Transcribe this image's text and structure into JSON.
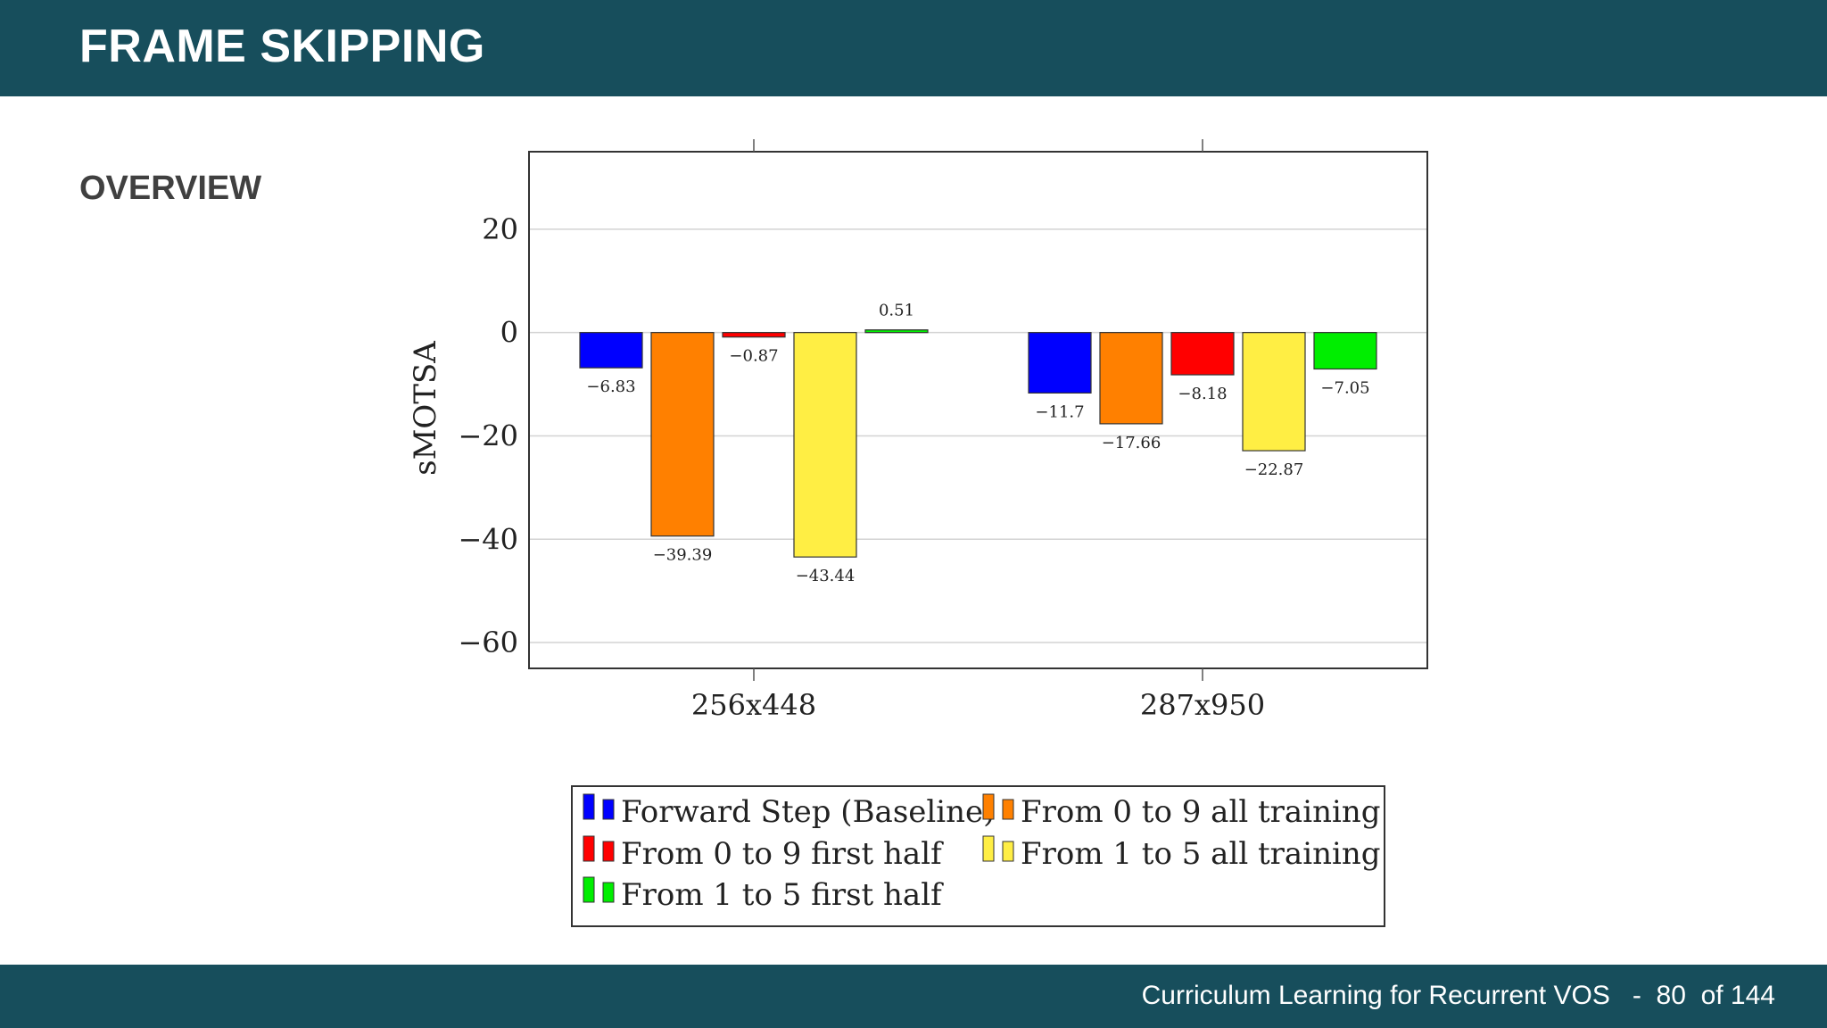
{
  "slide": {
    "title": "FRAME SKIPPING",
    "subtitle": "OVERVIEW",
    "footer_text": "Curriculum Learning for Recurrent VOS",
    "footer_separator": "-",
    "page_current": "80",
    "page_total_text": "of 144"
  },
  "chart_data": {
    "type": "bar",
    "ylabel": "sMOTSA",
    "ylim": [
      -65,
      35
    ],
    "yticks": [
      20,
      0,
      -20,
      -40,
      -60
    ],
    "grid": true,
    "legend_position": "below",
    "categories": [
      "256x448",
      "287x950"
    ],
    "series": [
      {
        "name": "Forward Step (Baseline)",
        "color": "#0000ff",
        "values": [
          -6.83,
          -11.7
        ],
        "labels": [
          "−6.83",
          "−11.7"
        ]
      },
      {
        "name": "From 0 to 9 all training",
        "color": "#ff8000",
        "values": [
          -39.39,
          -17.66
        ],
        "labels": [
          "−39.39",
          "−17.66"
        ]
      },
      {
        "name": "From 0 to 9 first half",
        "color": "#ff0000",
        "values": [
          -0.87,
          -8.18
        ],
        "labels": [
          "−0.87",
          "−8.18"
        ]
      },
      {
        "name": "From 1 to 5 all training",
        "color": "#ffee44",
        "values": [
          -43.44,
          -22.87
        ],
        "labels": [
          "−43.44",
          "−22.87"
        ]
      },
      {
        "name": "From 1 to 5 first half",
        "color": "#00ee00",
        "values": [
          0.51,
          -7.05
        ],
        "labels": [
          "0.51",
          "−7.05"
        ]
      }
    ]
  }
}
